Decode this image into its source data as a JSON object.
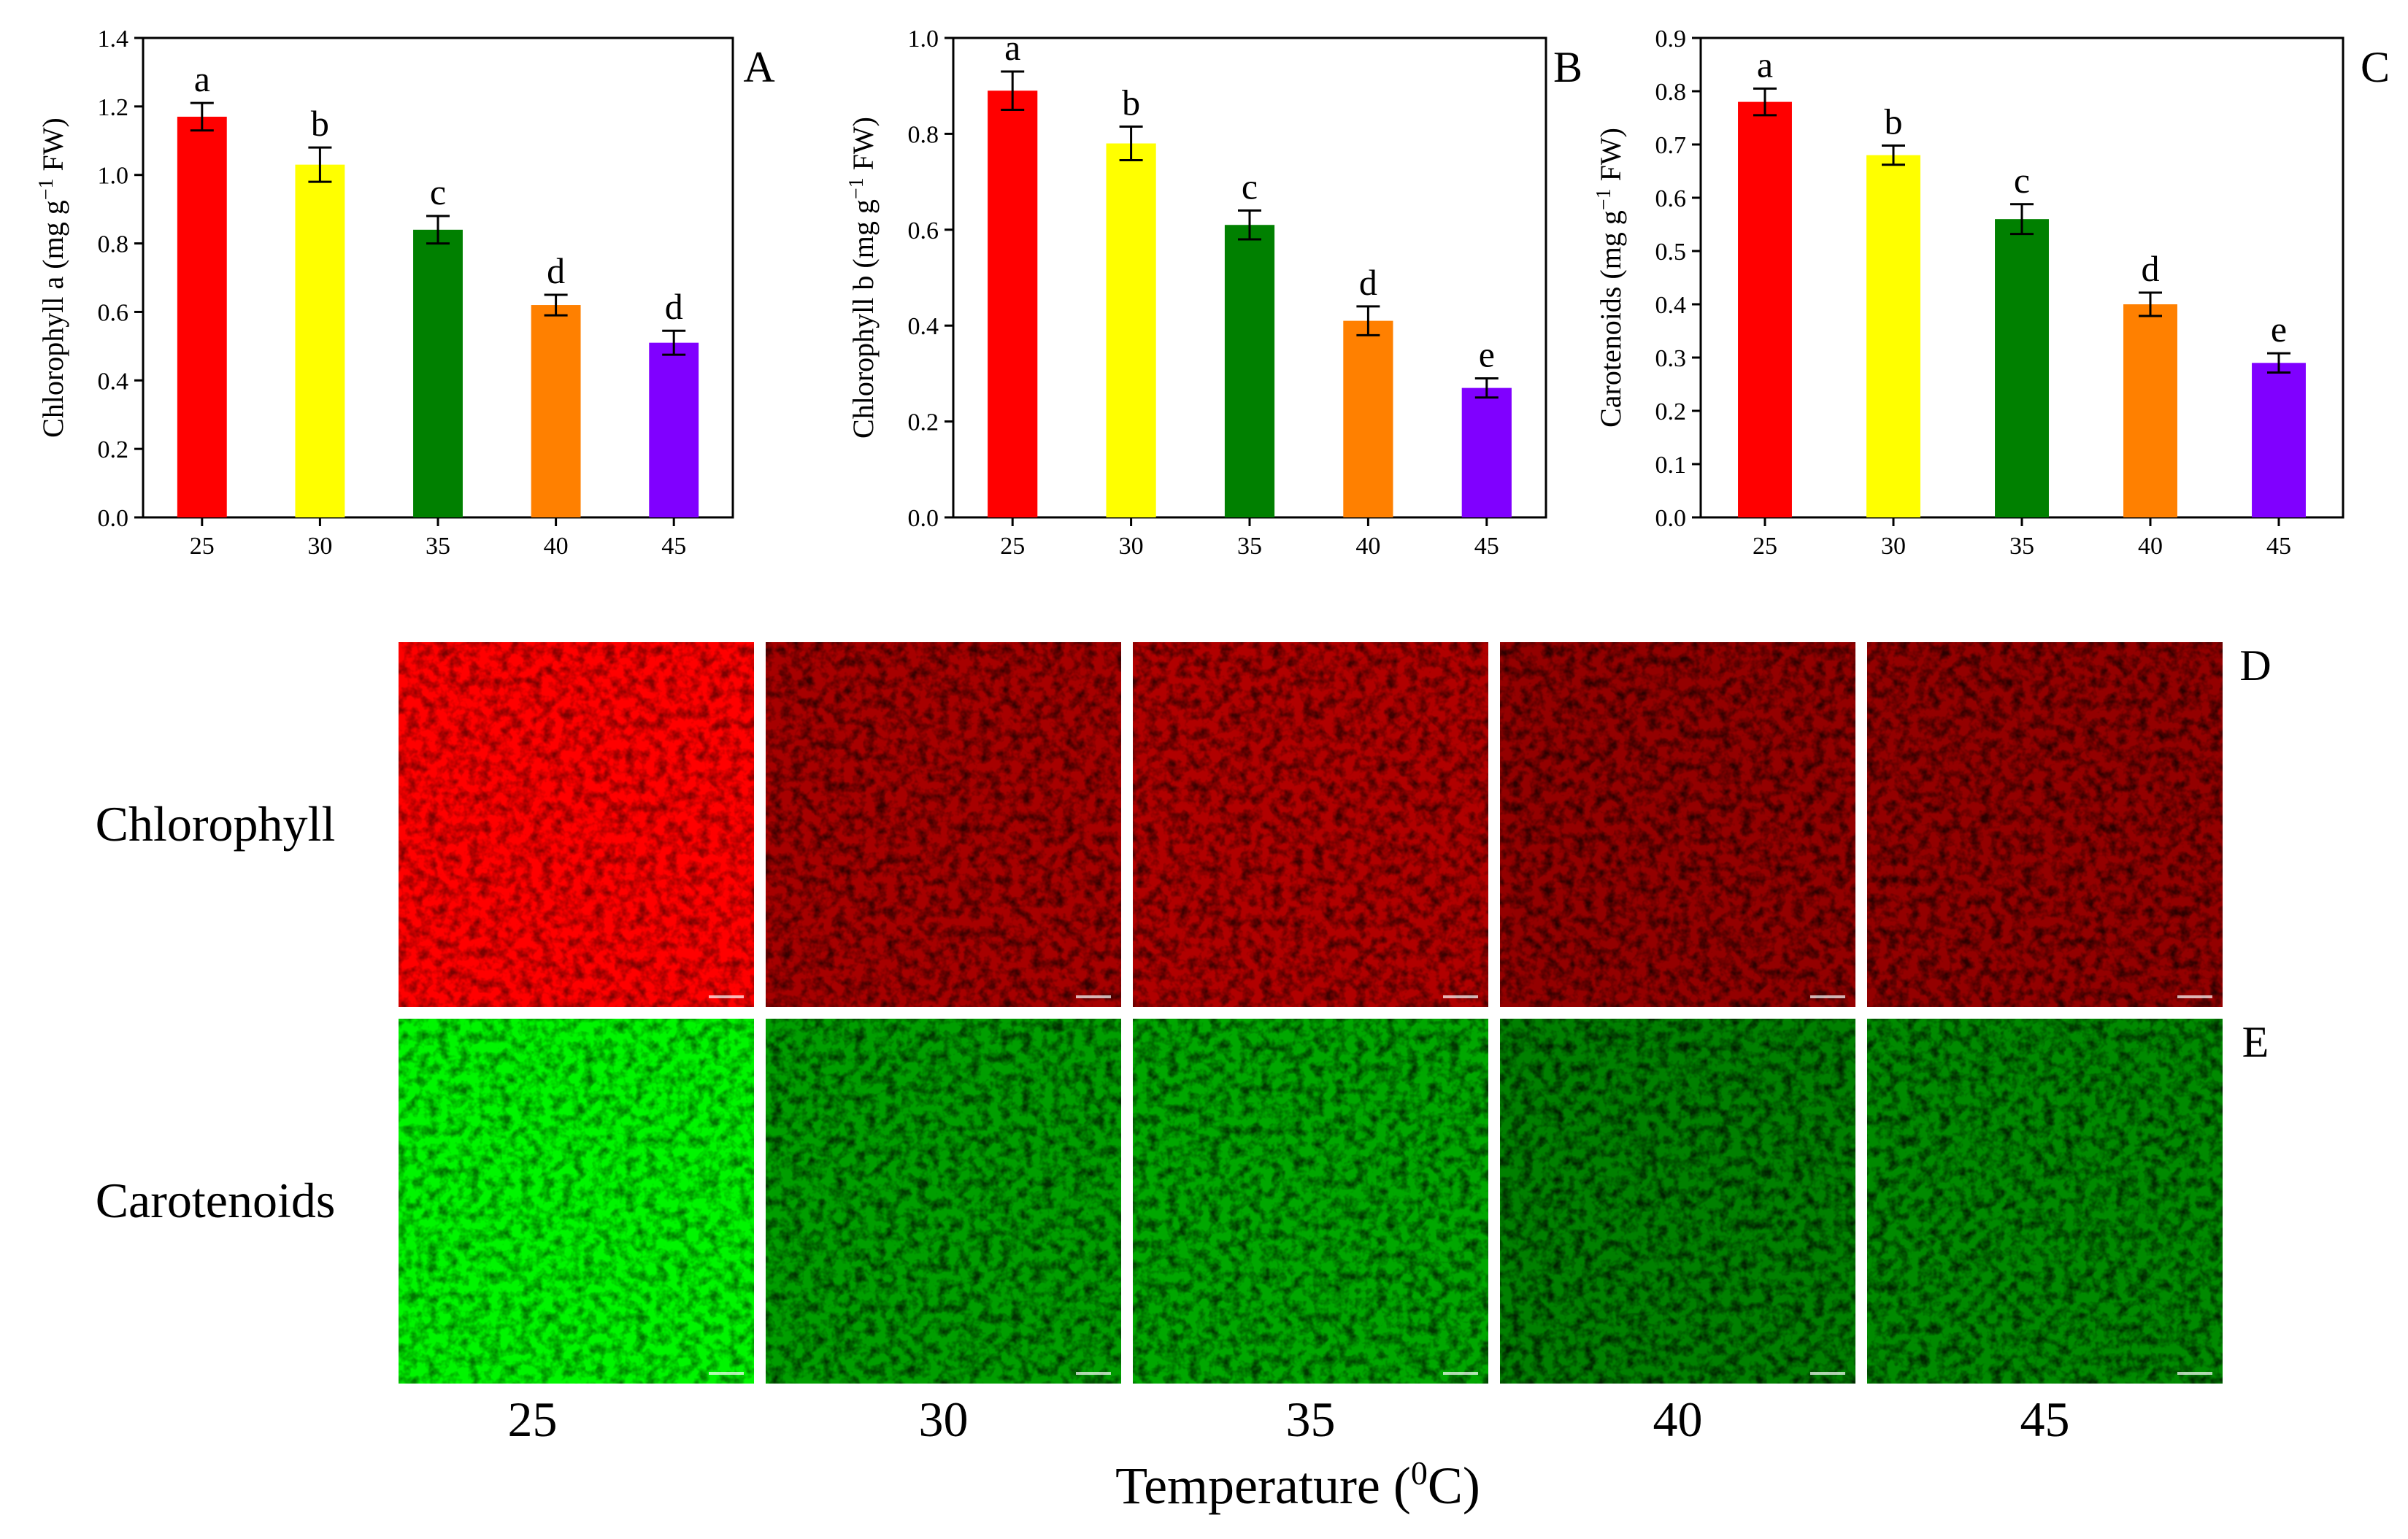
{
  "colors": [
    "#ff0000",
    "#ffff00",
    "#008000",
    "#ff8000",
    "#8000ff"
  ],
  "chart_data": [
    {
      "panel": "A",
      "type": "bar",
      "categories": [
        "25",
        "30",
        "35",
        "40",
        "45"
      ],
      "values": [
        1.17,
        1.03,
        0.84,
        0.62,
        0.51
      ],
      "errors": [
        0.04,
        0.05,
        0.04,
        0.03,
        0.035
      ],
      "significance": [
        "a",
        "b",
        "c",
        "d",
        "d"
      ],
      "ylabel": "Chlorophyll a (mg g",
      "ylabel_sup": "−1",
      "ylabel_tail": " FW)",
      "ylim": [
        0,
        1.4
      ],
      "yticks": [
        "0.0",
        "0.2",
        "0.4",
        "0.6",
        "0.8",
        "1.0",
        "1.2",
        "1.4"
      ]
    },
    {
      "panel": "B",
      "type": "bar",
      "categories": [
        "25",
        "30",
        "35",
        "40",
        "45"
      ],
      "values": [
        0.89,
        0.78,
        0.61,
        0.41,
        0.27
      ],
      "errors": [
        0.04,
        0.035,
        0.03,
        0.03,
        0.02
      ],
      "significance": [
        "a",
        "b",
        "c",
        "d",
        "e"
      ],
      "ylabel": "Chlorophyll b (mg g",
      "ylabel_sup": "−1",
      "ylabel_tail": " FW)",
      "ylim": [
        0,
        1.0
      ],
      "yticks": [
        "0.0",
        "0.2",
        "0.4",
        "0.6",
        "0.8",
        "1.0"
      ]
    },
    {
      "panel": "C",
      "type": "bar",
      "categories": [
        "25",
        "30",
        "35",
        "40",
        "45"
      ],
      "values": [
        0.78,
        0.68,
        0.56,
        0.4,
        0.29
      ],
      "errors": [
        0.025,
        0.018,
        0.028,
        0.022,
        0.018
      ],
      "significance": [
        "a",
        "b",
        "c",
        "d",
        "e"
      ],
      "ylabel": "Carotenoids (mg g",
      "ylabel_sup": "−1",
      "ylabel_tail": " FW)",
      "ylim": [
        0,
        0.9
      ],
      "yticks": [
        "0.0",
        "0.1",
        "0.2",
        "0.3",
        "0.4",
        "0.5",
        "0.6",
        "0.7",
        "0.8",
        "0.9"
      ]
    }
  ],
  "micrographs": {
    "rows": [
      {
        "label": "Chlorophyll",
        "panel": "D",
        "channel": "red",
        "intensity": [
          1.0,
          0.55,
          0.6,
          0.45,
          0.45
        ]
      },
      {
        "label": "Carotenoids",
        "panel": "E",
        "channel": "green",
        "intensity": [
          0.95,
          0.5,
          0.55,
          0.35,
          0.4
        ]
      }
    ],
    "columns": [
      "25",
      "30",
      "35",
      "40",
      "45"
    ],
    "xlabel": "Temperature (",
    "xlabel_sup": "0",
    "xlabel_tail": "C)"
  }
}
